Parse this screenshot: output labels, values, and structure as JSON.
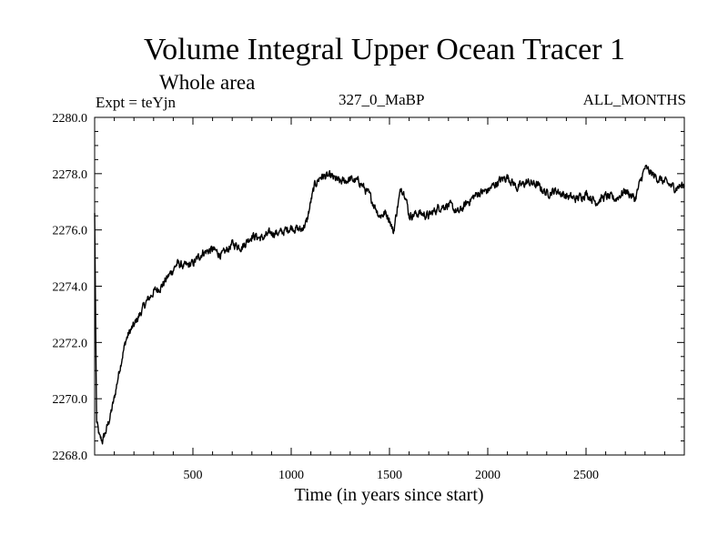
{
  "chart_data": {
    "type": "line",
    "title": "Volume Integral Upper Ocean Tracer 1",
    "subtitle": "Whole area",
    "expt_label": "Expt = teYjn",
    "meta_center": "327_0_MaBP",
    "meta_right": "ALL_MONTHS",
    "xlabel": "Time (in years since start)",
    "ylabel": "",
    "xlim": [
      0,
      3000
    ],
    "ylim": [
      2268.0,
      2280.0
    ],
    "xticks": [
      500,
      1000,
      1500,
      2000,
      2500
    ],
    "xtick_labels": [
      "500",
      "1000",
      "1500",
      "2000",
      "2500"
    ],
    "yticks": [
      2268.0,
      2270.0,
      2272.0,
      2274.0,
      2276.0,
      2278.0,
      2280.0
    ],
    "ytick_labels": [
      "2268.0",
      "2270.0",
      "2272.0",
      "2274.0",
      "2276.0",
      "2278.0",
      "2280.0"
    ],
    "series": [
      {
        "name": "Tracer 1",
        "x": [
          0,
          10,
          25,
          40,
          60,
          80,
          100,
          120,
          140,
          160,
          180,
          200,
          230,
          260,
          300,
          340,
          380,
          420,
          460,
          500,
          550,
          600,
          650,
          700,
          750,
          800,
          850,
          900,
          950,
          1000,
          1050,
          1080,
          1100,
          1120,
          1150,
          1200,
          1250,
          1300,
          1350,
          1400,
          1450,
          1480,
          1500,
          1520,
          1540,
          1560,
          1580,
          1600,
          1650,
          1700,
          1750,
          1800,
          1850,
          1900,
          1950,
          2000,
          2050,
          2100,
          2150,
          2200,
          2250,
          2300,
          2350,
          2400,
          2450,
          2500,
          2550,
          2600,
          2650,
          2700,
          2750,
          2780,
          2800,
          2850,
          2900,
          2950,
          3000
        ],
        "y": [
          2276.6,
          2269.2,
          2268.6,
          2268.5,
          2268.9,
          2269.4,
          2270.0,
          2270.8,
          2271.5,
          2272.1,
          2272.4,
          2272.6,
          2273.0,
          2273.4,
          2273.8,
          2274.0,
          2274.4,
          2274.8,
          2274.7,
          2274.8,
          2275.2,
          2275.3,
          2275.1,
          2275.5,
          2275.4,
          2275.8,
          2275.7,
          2275.9,
          2275.9,
          2276.1,
          2276.0,
          2276.3,
          2277.0,
          2277.6,
          2277.9,
          2277.9,
          2277.7,
          2277.8,
          2277.7,
          2277.2,
          2276.5,
          2276.6,
          2276.4,
          2275.9,
          2276.8,
          2277.5,
          2277.3,
          2276.5,
          2276.6,
          2276.5,
          2276.8,
          2276.9,
          2276.6,
          2277.0,
          2277.3,
          2277.4,
          2277.7,
          2277.9,
          2277.5,
          2277.7,
          2277.6,
          2277.3,
          2277.4,
          2277.2,
          2277.1,
          2277.3,
          2277.0,
          2277.2,
          2277.1,
          2277.4,
          2277.1,
          2277.8,
          2278.2,
          2277.9,
          2277.7,
          2277.5,
          2277.6
        ]
      }
    ]
  }
}
